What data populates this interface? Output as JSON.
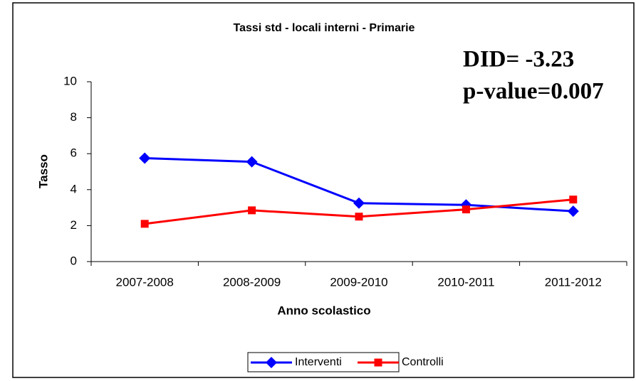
{
  "chart_data": {
    "type": "line",
    "title": "Tassi std - locali interni - Primarie",
    "annotations": [
      "DID= -3.23",
      "p-value=0.007"
    ],
    "xlabel": "Anno scolastico",
    "ylabel": "Tasso",
    "categories": [
      "2007-2008",
      "2008-2009",
      "2009-2010",
      "2010-2011",
      "2011-2012"
    ],
    "series": [
      {
        "name": "Interventi",
        "color": "#0000ff",
        "marker": "diamond",
        "values": [
          5.75,
          5.55,
          3.25,
          3.15,
          2.8
        ]
      },
      {
        "name": "Controlli",
        "color": "#ff0000",
        "marker": "square",
        "values": [
          2.1,
          2.85,
          2.5,
          2.9,
          3.45
        ]
      }
    ],
    "ylim": [
      0,
      10
    ],
    "yticks": [
      0,
      2,
      4,
      6,
      8,
      10
    ],
    "grid": false,
    "legend": "bottom"
  }
}
